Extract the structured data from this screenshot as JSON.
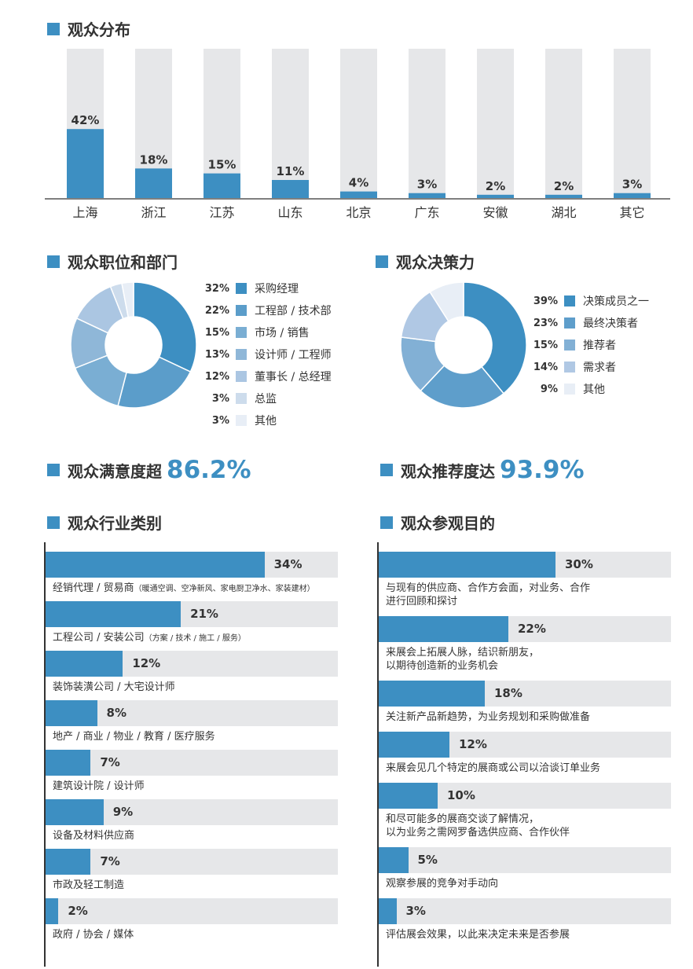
{
  "sections": {
    "province": "观众分布",
    "position": "观众职位和部门",
    "decision": "观众决策力",
    "satisfaction_label": "观众满意度超",
    "satisfaction_value": "86.2%",
    "recommend_label": "观众推荐度达",
    "recommend_value": "93.9%",
    "industry": "观众行业类别",
    "purpose": "观众参观目的"
  },
  "chart_data": [
    {
      "type": "bar",
      "title": "观众分布",
      "categories": [
        "上海",
        "浙江",
        "江苏",
        "山东",
        "北京",
        "广东",
        "安徽",
        "湖北",
        "其它"
      ],
      "values": [
        42,
        18,
        15,
        11,
        4,
        3,
        2,
        2,
        3
      ],
      "value_labels": [
        "42%",
        "18%",
        "15%",
        "11%",
        "4%",
        "3%",
        "2%",
        "2%",
        "3%"
      ],
      "ylim": [
        0,
        100
      ],
      "colors": {
        "bar": "#3d8fc2",
        "track": "#e6e7e9"
      }
    },
    {
      "type": "pie",
      "title": "观众职位和部门",
      "labels": [
        "采购经理",
        "工程部 / 技术部",
        "市场 / 销售",
        "设计师 / 工程师",
        "董事长 / 总经理",
        "总监",
        "其他"
      ],
      "values": [
        32,
        22,
        15,
        13,
        12,
        3,
        3
      ],
      "value_labels": [
        "32%",
        "22%",
        "15%",
        "13%",
        "12%",
        "3%",
        "3%"
      ],
      "colors": [
        "#3d8fc2",
        "#5b9dca",
        "#7aaed3",
        "#8fb7d8",
        "#abc6e2",
        "#cddcec",
        "#e8eef6"
      ]
    },
    {
      "type": "pie",
      "title": "观众决策力",
      "labels": [
        "决策成员之一",
        "最终决策者",
        "推荐者",
        "需求者",
        "其他"
      ],
      "values": [
        39,
        23,
        15,
        14,
        9
      ],
      "value_labels": [
        "39%",
        "23%",
        "15%",
        "14%",
        "9%"
      ],
      "colors": [
        "#3d8fc2",
        "#5e9ecb",
        "#82b0d5",
        "#b0c8e4",
        "#e8eef6"
      ]
    },
    {
      "type": "bar",
      "orientation": "horizontal",
      "title": "观众行业类别",
      "categories": [
        "经销代理 / 贸易商",
        "工程公司 / 安装公司",
        "装饰装潢公司 / 大宅设计师",
        "地产 / 商业 / 物业 / 教育 / 医疗服务",
        "建筑设计院 / 设计师",
        "设备及材料供应商",
        "市政及轻工制造",
        "政府 / 协会 / 媒体"
      ],
      "category_notes": [
        "（暖通空调、空净新风、家电厨卫净水、家装建材）",
        "（方案 / 技术 / 施工 / 服务）",
        "",
        "",
        "",
        "",
        "",
        ""
      ],
      "values": [
        34,
        21,
        12,
        8,
        7,
        9,
        7,
        2
      ],
      "value_labels": [
        "34%",
        "21%",
        "12%",
        "8%",
        "7%",
        "9%",
        "7%",
        "2%"
      ]
    },
    {
      "type": "bar",
      "orientation": "horizontal",
      "title": "观众参观目的",
      "categories": [
        [
          "与现有的供应商、合作方会面，对业务、合作",
          "进行回顾和探讨"
        ],
        [
          "来展会上拓展人脉，结识新朋友，",
          "以期待创造新的业务机会"
        ],
        [
          "关注新产品新趋势，为业务规划和采购做准备"
        ],
        [
          "来展会见几个特定的展商或公司以洽谈订单业务"
        ],
        [
          "和尽可能多的展商交谈了解情况，",
          "以为业务之需网罗备选供应商、合作伙伴"
        ],
        [
          "观察参展的竞争对手动向"
        ],
        [
          "评估展会效果，以此来决定未来是否参展"
        ]
      ],
      "values": [
        30,
        22,
        18,
        12,
        10,
        5,
        3
      ],
      "value_labels": [
        "30%",
        "22%",
        "18%",
        "12%",
        "10%",
        "5%",
        "3%"
      ]
    }
  ]
}
